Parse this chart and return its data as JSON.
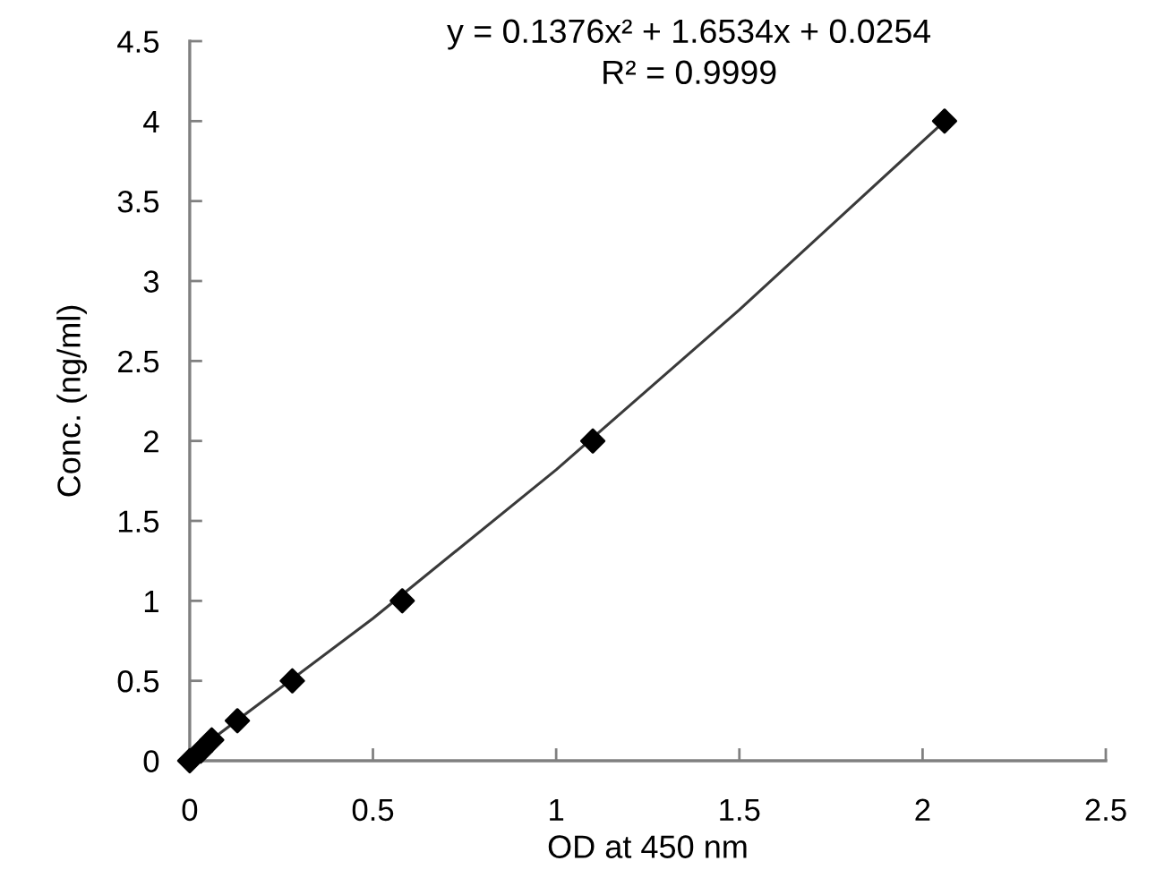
{
  "chart_data": {
    "type": "scatter",
    "xlabel": "OD at 450 nm",
    "ylabel": "Conc. (ng/ml)",
    "annotations": [
      "y = 0.1376x² + 1.6534x + 0.0254",
      "R² = 0.9999"
    ],
    "series": [
      {
        "type": "line",
        "color": "#3a3a3a",
        "line_style": "solid",
        "marker": "none",
        "x": [
          0,
          0.5,
          1,
          1.5,
          2.06
        ],
        "values": [
          0.03,
          0.89,
          1.82,
          2.82,
          4.0
        ]
      },
      {
        "color": "#000000",
        "x": [
          0,
          0.03,
          0.06,
          0.13,
          0.28,
          0.58,
          1.1,
          2.06
        ],
        "values": [
          0,
          0.06,
          0.13,
          0.25,
          0.5,
          1,
          2,
          4
        ]
      }
    ],
    "marker": "diamond",
    "xlim": [
      0,
      2.5
    ],
    "xticks": [
      0,
      0.5,
      1,
      1.5,
      2,
      2.5
    ],
    "ylim": [
      0,
      4.5
    ],
    "yticks": [
      0,
      0.5,
      1,
      1.5,
      2,
      2.5,
      3,
      3.5,
      4,
      4.5
    ],
    "grid": false
  }
}
